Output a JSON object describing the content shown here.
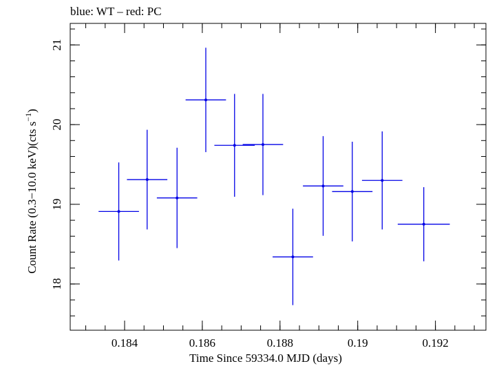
{
  "chart_data": {
    "type": "scatter",
    "title": "blue: WT – red: PC",
    "xlabel": "Time Since 59334.0 MJD (days)",
    "ylabel_main": "Count Rate (0.3−10.0 keV)(cts s",
    "ylabel_sup": "−1",
    "ylabel_close": ")",
    "xlim": [
      0.1826,
      0.1933
    ],
    "ylim": [
      17.42,
      21.27
    ],
    "x_ticks": [
      {
        "value": 0.184,
        "label": "0.184"
      },
      {
        "value": 0.186,
        "label": "0.186"
      },
      {
        "value": 0.188,
        "label": "0.188"
      },
      {
        "value": 0.19,
        "label": "0.19"
      },
      {
        "value": 0.192,
        "label": "0.192"
      }
    ],
    "x_minor_step": 0.0005,
    "y_ticks": [
      {
        "value": 18,
        "label": "18"
      },
      {
        "value": 19,
        "label": "19"
      },
      {
        "value": 20,
        "label": "20"
      },
      {
        "value": 21,
        "label": "21"
      }
    ],
    "y_minor_step": 0.2,
    "grid": false,
    "series": [
      {
        "color": "#0000e6",
        "points": [
          {
            "x": 0.18385,
            "y": 18.91,
            "xerr": 0.00052,
            "yerr": 0.615
          },
          {
            "x": 0.18458,
            "y": 19.31,
            "xerr": 0.00052,
            "yerr": 0.625
          },
          {
            "x": 0.18535,
            "y": 19.08,
            "xerr": 0.00052,
            "yerr": 0.63
          },
          {
            "x": 0.18609,
            "y": 20.31,
            "xerr": 0.00052,
            "yerr": 0.655
          },
          {
            "x": 0.18683,
            "y": 19.74,
            "xerr": 0.00052,
            "yerr": 0.645
          },
          {
            "x": 0.18756,
            "y": 19.75,
            "xerr": 0.00052,
            "yerr": 0.635
          },
          {
            "x": 0.18833,
            "y": 18.34,
            "xerr": 0.00052,
            "yerr": 0.605
          },
          {
            "x": 0.18911,
            "y": 19.23,
            "xerr": 0.00052,
            "yerr": 0.625
          },
          {
            "x": 0.18986,
            "y": 19.16,
            "xerr": 0.00052,
            "yerr": 0.625
          },
          {
            "x": 0.19063,
            "y": 19.3,
            "xerr": 0.00052,
            "yerr": 0.615
          },
          {
            "x": 0.1917,
            "y": 18.75,
            "xerr": 0.00067,
            "yerr": 0.465
          }
        ]
      }
    ]
  }
}
